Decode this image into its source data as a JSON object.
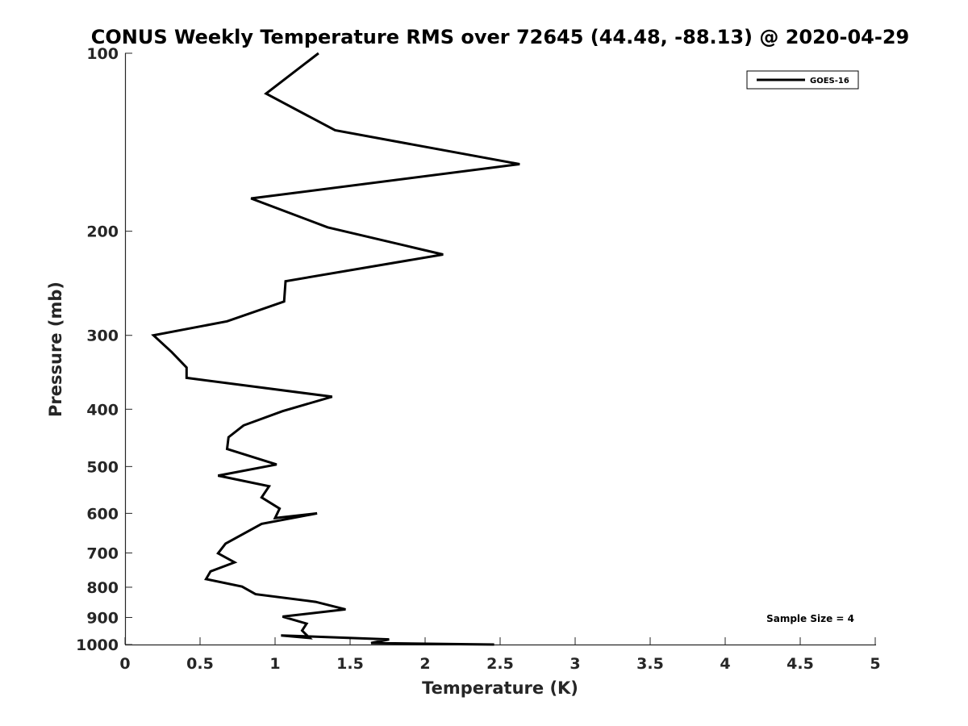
{
  "chart_data": {
    "type": "line",
    "title": "CONUS Weekly Temperature RMS over 72645 (44.48, -88.13) @ 2020-04-29",
    "xlabel": "Temperature (K)",
    "ylabel": "Pressure (mb)",
    "xlim": [
      0,
      5
    ],
    "ylim": [
      100,
      1000
    ],
    "y_scale": "log",
    "y_reversed": true,
    "x_ticks": [
      "0",
      "0.5",
      "1",
      "1.5",
      "2",
      "2.5",
      "3",
      "3.5",
      "4",
      "4.5",
      "5"
    ],
    "y_ticks": [
      "100",
      "200",
      "300",
      "400",
      "500",
      "600",
      "700",
      "800",
      "900",
      "1000"
    ],
    "grid": false,
    "legend_position": "top-right",
    "annotation": "Sample Size = 4",
    "series": [
      {
        "name": "GOES-16",
        "color": "#000000",
        "x": [
          1.29,
          0.94,
          1.4,
          2.63,
          0.84,
          1.35,
          2.12,
          1.07,
          1.06,
          0.68,
          0.19,
          0.31,
          0.41,
          0.41,
          1.38,
          1.05,
          0.79,
          0.69,
          0.68,
          1.01,
          0.62,
          0.96,
          0.91,
          1.03,
          1.0,
          1.28,
          0.91,
          0.67,
          0.62,
          0.73,
          0.57,
          0.54,
          0.78,
          0.87,
          1.27,
          1.47,
          1.05,
          1.21,
          1.18,
          1.23,
          1.04,
          1.76,
          1.64,
          2.46
        ],
        "y": [
          100,
          117,
          135,
          154,
          176,
          197,
          219,
          243,
          263,
          284,
          300,
          320,
          340,
          354,
          381,
          403,
          426,
          446,
          467,
          496,
          518,
          540,
          564,
          589,
          611,
          600,
          625,
          675,
          701,
          726,
          752,
          775,
          798,
          822,
          847,
          872,
          897,
          922,
          947,
          975,
          965,
          980,
          994,
          1000
        ]
      }
    ]
  }
}
